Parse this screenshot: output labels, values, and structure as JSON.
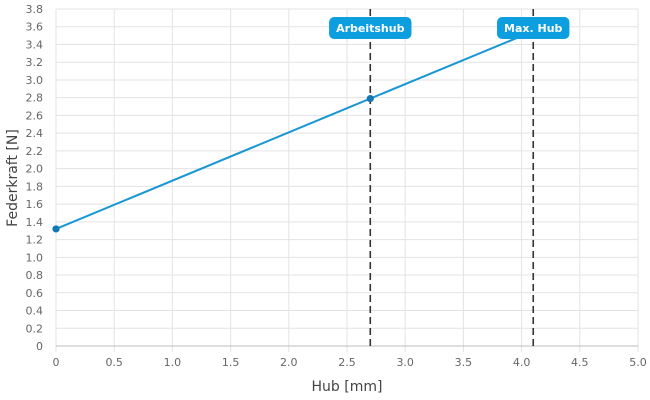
{
  "chart_data": {
    "type": "line",
    "xlabel": "Hub [mm]",
    "ylabel": "Federkraft [N]",
    "xlim": [
      0,
      5.0
    ],
    "ylim": [
      0,
      3.8
    ],
    "x_ticks": [
      "0",
      "0.5",
      "1.0",
      "1.5",
      "2.0",
      "2.5",
      "3.0",
      "3.5",
      "4.0",
      "4.5",
      "5.0"
    ],
    "y_ticks": [
      "0",
      "0.2",
      "0.4",
      "0.6",
      "0.8",
      "1.0",
      "1.2",
      "1.4",
      "1.6",
      "1.8",
      "2.0",
      "2.2",
      "2.4",
      "2.6",
      "2.8",
      "3.0",
      "3.2",
      "3.4",
      "3.6",
      "3.8"
    ],
    "grid": true,
    "series": [
      {
        "x": [
          0,
          2.7,
          4.1
        ],
        "y": [
          1.32,
          2.79,
          3.55
        ],
        "markers": [
          0,
          2.7
        ]
      }
    ],
    "annotations": [
      {
        "x": 2.7,
        "label": "Arbeitshub"
      },
      {
        "x": 4.1,
        "label": "Max. Hub"
      }
    ],
    "colors": {
      "line": "#1a96d4",
      "marker": "#1478b4",
      "annotation_bg": "#0d9ee0",
      "annotation_line": "#333333"
    }
  }
}
